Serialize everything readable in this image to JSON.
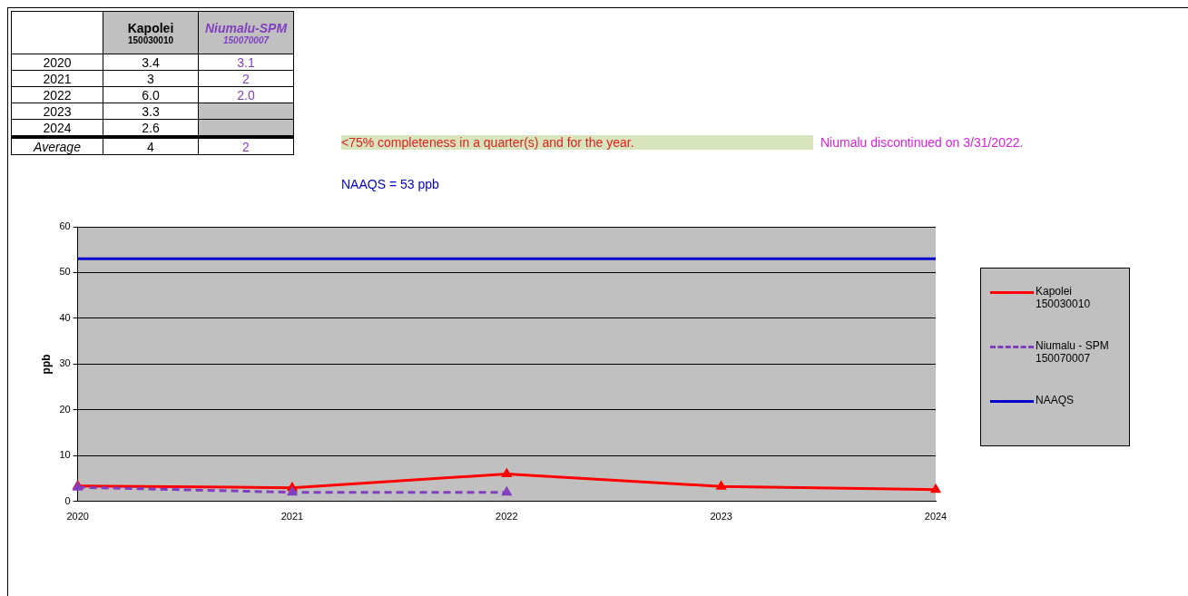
{
  "chart_data": {
    "type": "line",
    "ylabel": "ppb",
    "categories": [
      "2020",
      "2021",
      "2022",
      "2023",
      "2024"
    ],
    "series": [
      {
        "name": "Kapolei 150030010",
        "color": "#ff0000",
        "values": [
          3.4,
          3,
          6.0,
          3.3,
          2.6
        ]
      },
      {
        "name": "Niumalu - SPM 150070007",
        "color": "#7f3fbf",
        "values": [
          3.1,
          2,
          2.0,
          null,
          null
        ],
        "line_style": "dashed"
      }
    ],
    "ylim": [
      0,
      60
    ],
    "yticks": [
      0,
      10,
      20,
      30,
      40,
      50,
      60
    ],
    "grid": "y",
    "marker": "triangle",
    "legend": "right",
    "ref_lines": [
      {
        "axis": "y",
        "value": 53,
        "label": "NAAQS",
        "color": "#0000cc"
      }
    ],
    "annotations": [
      "Kapolei",
      "150030010",
      "Niumalu-SPM",
      "150070007",
      "3.4",
      "3",
      "6.0",
      "3.3",
      "2.6",
      "3.1",
      "2",
      "2.0",
      "Average",
      "4",
      "2",
      "<75% completeness in a quarter(s) and for the year.",
      "Niumalu discontinued on 3/31/2022.",
      "NAAQS = 53 ppb"
    ]
  }
}
